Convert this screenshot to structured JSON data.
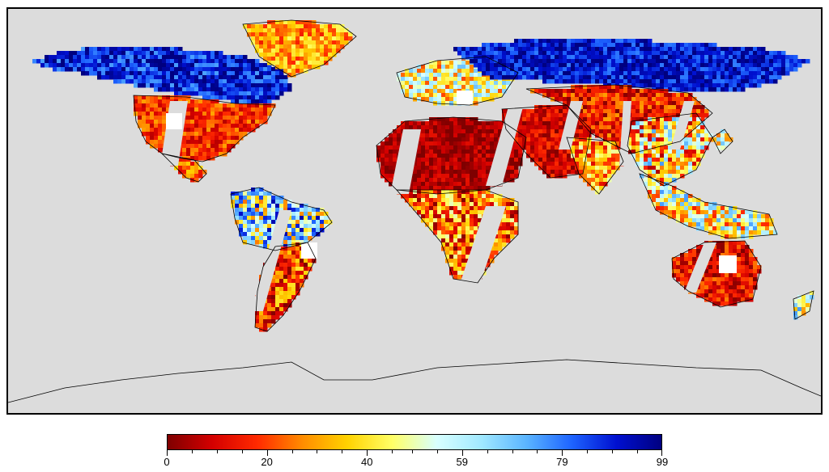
{
  "map": {
    "background_color": "#dcdcdc",
    "coastline_color": "#000000",
    "no_data_color": "#dcdcdc"
  },
  "colorbar": {
    "min": 0,
    "max": 99,
    "tick_labels": [
      "0",
      "20",
      "40",
      "59",
      "79",
      "99"
    ],
    "tick_values": [
      0,
      20,
      40,
      59,
      79,
      99
    ],
    "minor_tick_values": [
      5,
      10,
      15,
      25,
      30,
      35,
      45,
      49,
      54,
      64,
      69,
      74,
      84,
      89,
      94
    ],
    "colors": [
      "#7f0000",
      "#d40000",
      "#ff2a00",
      "#ff8c00",
      "#ffd200",
      "#ffff66",
      "#d8ffff",
      "#a0e8ff",
      "#5ab4ff",
      "#1e64ff",
      "#0010d0",
      "#000080"
    ]
  }
}
